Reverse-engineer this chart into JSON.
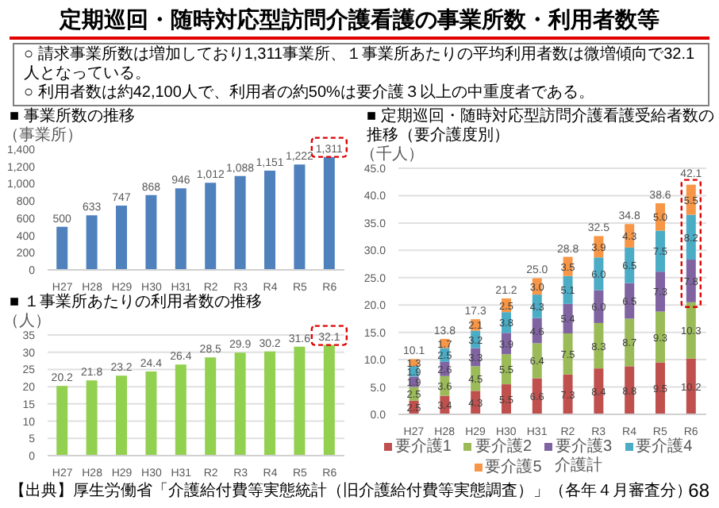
{
  "chart_data": [
    {
      "type": "bar",
      "title": "■ 事業所数の推移",
      "ylabel": "（事業所）",
      "annotations": [
        "定期巡回・随時対応型訪問介護看護の事業所数・利用者数等",
        "○ 請求事業所数は増加しており1,311事業所、１事業所あたりの平均利用者数は微増傾向で32.1人となっている。",
        "○ 利用者数は約42,100人で、利用者の約50%は要介護３以上の中重度者である。",
        "【出典】厚生労働省「介護給付費等実態統計（旧介護給付費等実態調査）」（各年４月審査分）",
        "68"
      ],
      "categories": [
        "H27",
        "H28",
        "H29",
        "H30",
        "H31",
        "R2",
        "R3",
        "R4",
        "R5",
        "R6"
      ],
      "values": [
        500,
        633,
        747,
        868,
        946,
        1012,
        1088,
        1151,
        1222,
        1311
      ],
      "value_labels": [
        "500",
        "633",
        "747",
        "868",
        "946",
        "1,012",
        "1,088",
        "1,151",
        "1,222",
        "1,311"
      ],
      "color": "#4f81bd",
      "ylim": [
        0,
        1400
      ],
      "yticks": [
        0,
        200,
        400,
        600,
        800,
        {
          "value": 1000,
          "label": "1,000"
        },
        {
          "value": 1200,
          "label": "1,200"
        },
        {
          "value": 1400,
          "label": "1,400"
        }
      ]
    },
    {
      "type": "bar",
      "title": "■ １事業所あたりの利用者数の推移",
      "ylabel": "（人）",
      "categories": [
        "H27",
        "H28",
        "H29",
        "H30",
        "H31",
        "R2",
        "R3",
        "R4",
        "R5",
        "R6"
      ],
      "values": [
        20.2,
        21.8,
        23.2,
        24.4,
        26.4,
        28.5,
        29.9,
        30.2,
        31.6,
        32.1
      ],
      "data_labels": true,
      "color": "#92d050",
      "ylim": [
        0,
        35
      ],
      "yticks": [
        0,
        5,
        10,
        15,
        20,
        25,
        30,
        35
      ],
      "grid": "y"
    },
    {
      "type": "bar",
      "stacked": true,
      "title": "■ 定期巡回・随時対応型訪問介護看護受給者数の推移（要介護度別）",
      "ylabel": "（千人）",
      "annotations": [
        "介護計"
      ],
      "categories": [
        "H27",
        "H28",
        "H29",
        "H30",
        "H31",
        "R2",
        "R3",
        "R4",
        "R5",
        "R6"
      ],
      "series": [
        {
          "name": "要介護1",
          "color": "#c0504d",
          "values": [
            2.5,
            3.4,
            4.3,
            5.5,
            6.6,
            7.3,
            8.4,
            8.8,
            9.5,
            10.2
          ],
          "value_labels": [
            "2.5",
            "3.4",
            "4.3",
            "5.5",
            "6.6",
            "7.3",
            "8.4",
            "8.8",
            "9.5",
            "10.2"
          ]
        },
        {
          "name": "要介護2",
          "color": "#9bbb59",
          "values": [
            2.5,
            3.6,
            4.5,
            5.5,
            6.4,
            7.5,
            8.3,
            8.7,
            9.3,
            10.3
          ],
          "value_labels": [
            "2.5",
            "3.6",
            "4.5",
            "5.5",
            "6.4",
            "7.5",
            "8.3",
            "8.7",
            "9.3",
            "10.3"
          ]
        },
        {
          "name": "要介護3",
          "color": "#8064a2",
          "values": [
            1.9,
            2.6,
            3.3,
            3.9,
            4.6,
            5.4,
            6.0,
            6.5,
            7.3,
            7.8
          ],
          "value_labels": [
            "1.9",
            "2.6",
            "3.3",
            "3.9",
            "4.6",
            "5.4",
            "6.0",
            "6.5",
            "7.3",
            "7.8"
          ]
        },
        {
          "name": "要介護4",
          "color": "#4bacc6",
          "values": [
            1.9,
            2.5,
            3.2,
            3.8,
            4.3,
            5.1,
            6.0,
            6.5,
            7.5,
            8.2
          ],
          "value_labels": [
            "1.9",
            "2.5",
            "3.2",
            "3.8",
            "4.3",
            "5.1",
            "6.0",
            "6.5",
            "7.5",
            "8.2"
          ]
        },
        {
          "name": "要介護5",
          "color": "#f79646",
          "values": [
            1.3,
            1.7,
            2.1,
            2.5,
            3.0,
            3.5,
            3.9,
            4.3,
            5.0,
            5.5
          ],
          "value_labels": [
            "1.3",
            "1.7",
            "2.1",
            "2.5",
            "3.0",
            "3.5",
            "3.9",
            "4.3",
            "5.0",
            "5.5"
          ]
        }
      ],
      "totals": [
        "10.1",
        "13.8",
        "17.3",
        "21.2",
        "25.0",
        "28.8",
        "32.5",
        "34.8",
        "38.6",
        "42.1"
      ],
      "ylim": [
        0,
        45
      ],
      "yticks": [
        {
          "value": 0,
          "label": "0.0"
        },
        {
          "value": 5,
          "label": "5.0"
        },
        {
          "value": 10,
          "label": "10.0"
        },
        {
          "value": 15,
          "label": "15.0"
        },
        {
          "value": 20,
          "label": "20.0"
        },
        {
          "value": 25,
          "label": "25.0"
        },
        {
          "value": 30,
          "label": "30.0"
        },
        {
          "value": 35,
          "label": "35.0"
        },
        {
          "value": 40,
          "label": "40.0"
        },
        {
          "value": 45,
          "label": "45.0"
        }
      ],
      "grid": "y",
      "legend": "bottom"
    }
  ]
}
